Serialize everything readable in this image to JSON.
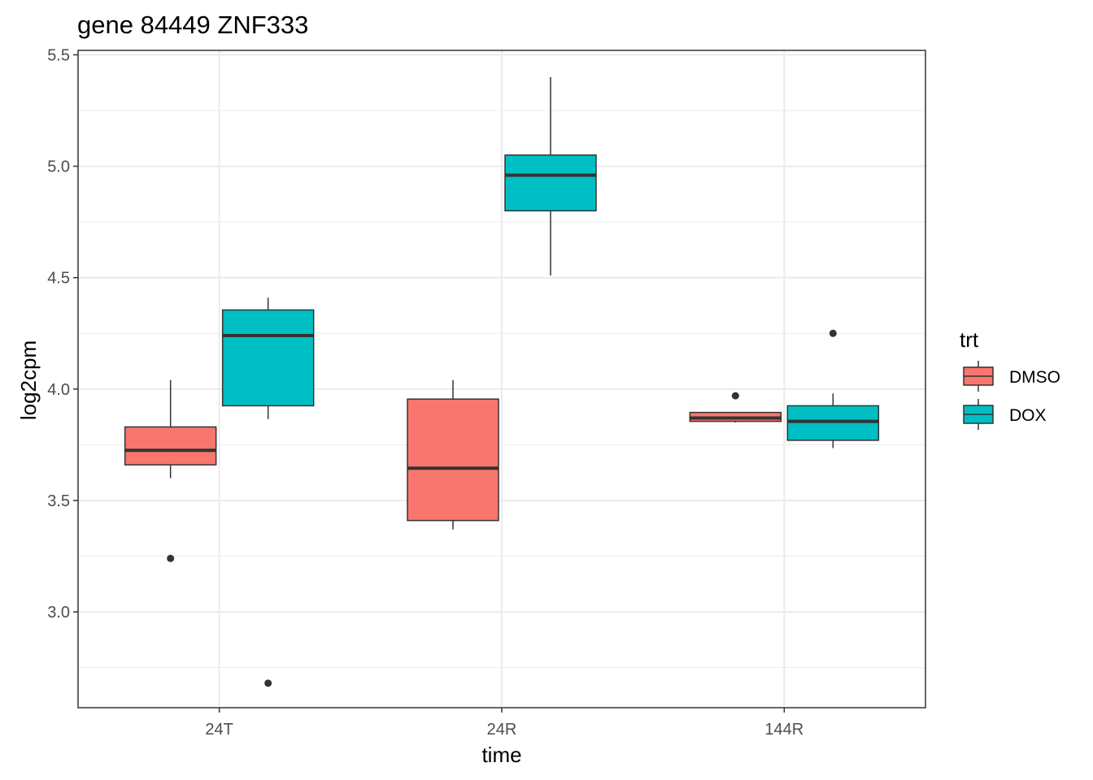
{
  "chart_data": {
    "type": "boxplot",
    "title": "gene 84449 ZNF333",
    "xlabel": "time",
    "ylabel": "log2cpm",
    "categories": [
      "24T",
      "24R",
      "144R"
    ],
    "yticks": [
      "3.0",
      "3.5",
      "4.0",
      "4.5",
      "5.0",
      "5.5"
    ],
    "ylim": [
      2.57,
      5.52
    ],
    "grid": true,
    "legend": {
      "title": "trt",
      "position": "right",
      "entries": [
        "DMSO",
        "DOX"
      ]
    },
    "series": [
      {
        "name": "DMSO",
        "color": "#F8766D",
        "boxes": [
          {
            "category": "24T",
            "lower_whisker": 3.6,
            "q1": 3.66,
            "median": 3.725,
            "q3": 3.83,
            "upper_whisker": 4.04,
            "outliers": [
              3.24
            ]
          },
          {
            "category": "24R",
            "lower_whisker": 3.37,
            "q1": 3.41,
            "median": 3.645,
            "q3": 3.955,
            "upper_whisker": 4.04,
            "outliers": []
          },
          {
            "category": "144R",
            "lower_whisker": 3.85,
            "q1": 3.855,
            "median": 3.87,
            "q3": 3.895,
            "upper_whisker": 3.895,
            "outliers": [
              3.97
            ]
          }
        ]
      },
      {
        "name": "DOX",
        "color": "#00BFC4",
        "boxes": [
          {
            "category": "24T",
            "lower_whisker": 3.865,
            "q1": 3.925,
            "median": 4.24,
            "q3": 4.355,
            "upper_whisker": 4.41,
            "outliers": [
              2.68
            ]
          },
          {
            "category": "24R",
            "lower_whisker": 4.51,
            "q1": 4.8,
            "median": 4.96,
            "q3": 5.05,
            "upper_whisker": 5.4,
            "outliers": []
          },
          {
            "category": "144R",
            "lower_whisker": 3.735,
            "q1": 3.77,
            "median": 3.855,
            "q3": 3.925,
            "upper_whisker": 3.98,
            "outliers": [
              4.25
            ]
          }
        ]
      }
    ]
  }
}
